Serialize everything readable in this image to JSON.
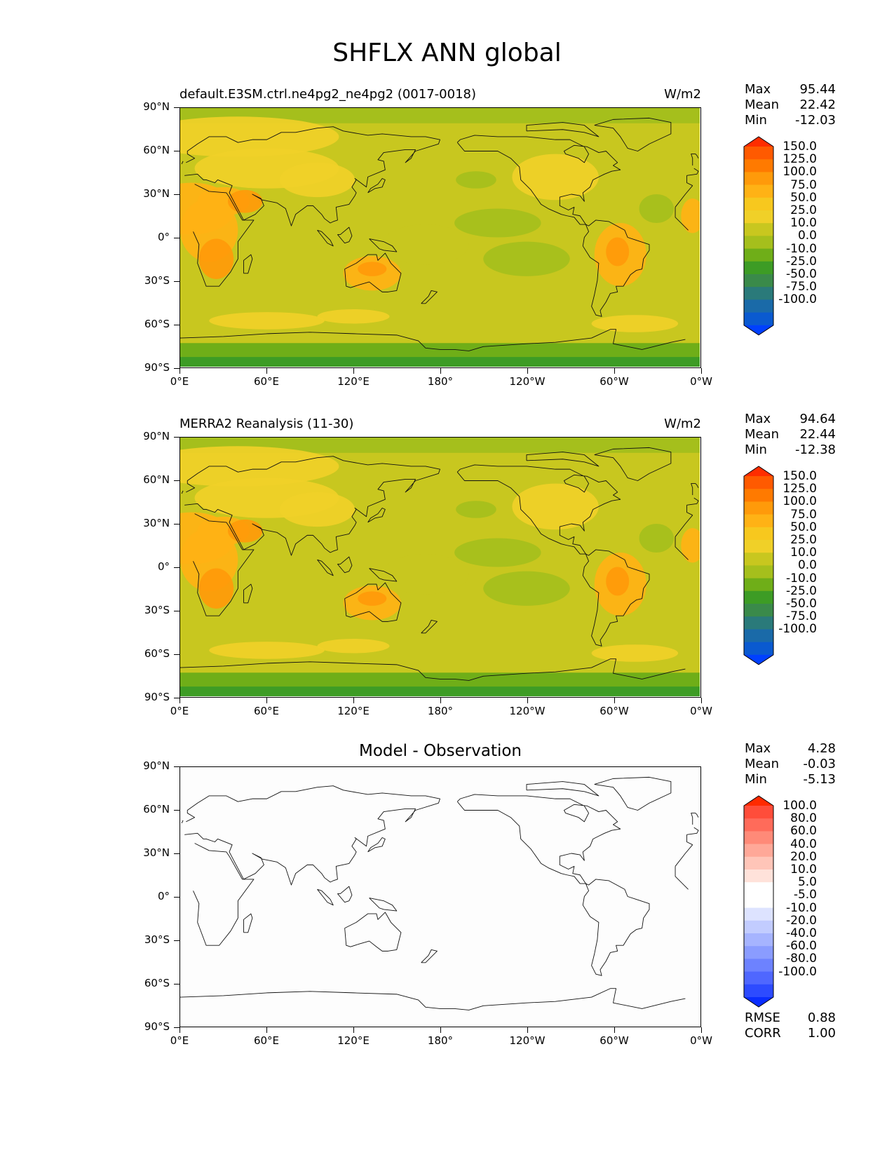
{
  "figure_title": "SHFLX ANN global",
  "lon_labels": [
    "0°E",
    "60°E",
    "120°E",
    "180°",
    "120°W",
    "60°W",
    "0°W"
  ],
  "lat_labels": [
    "90°N",
    "60°N",
    "30°N",
    "0°",
    "30°S",
    "60°S",
    "90°S"
  ],
  "panels": [
    {
      "title_left": "default.E3SM.ctrl.ne4pg2_ne4pg2 (0017-0018)",
      "title_right": "W/m2",
      "title_center": "",
      "stats": [
        {
          "label": "Max",
          "value": "95.44"
        },
        {
          "label": "Mean",
          "value": "22.42"
        },
        {
          "label": "Min",
          "value": "-12.03"
        }
      ],
      "colorbar": {
        "labels": [
          "150.0",
          "125.0",
          "100.0",
          "75.0",
          "50.0",
          "25.0",
          "10.0",
          "0.0",
          "-10.0",
          "-25.0",
          "-50.0",
          "-75.0",
          "-100.0"
        ],
        "colors": [
          "#ff2d00",
          "#ff5a00",
          "#ff7a00",
          "#ff9a0a",
          "#ffb215",
          "#f7c81e",
          "#f0d028",
          "#c8c71f",
          "#a5bf1c",
          "#6fae18",
          "#3d9c25",
          "#3a8a4a",
          "#2a7a7a",
          "#1a6aa8",
          "#0a5ad0",
          "#0040ff"
        ]
      }
    },
    {
      "title_left": "MERRA2 Reanalysis (11-30)",
      "title_right": "W/m2",
      "title_center": "",
      "stats": [
        {
          "label": "Max",
          "value": "94.64"
        },
        {
          "label": "Mean",
          "value": "22.44"
        },
        {
          "label": "Min",
          "value": "-12.38"
        }
      ],
      "colorbar": {
        "labels": [
          "150.0",
          "125.0",
          "100.0",
          "75.0",
          "50.0",
          "25.0",
          "10.0",
          "0.0",
          "-10.0",
          "-25.0",
          "-50.0",
          "-75.0",
          "-100.0"
        ],
        "colors": [
          "#ff2d00",
          "#ff5a00",
          "#ff7a00",
          "#ff9a0a",
          "#ffb215",
          "#f7c81e",
          "#f0d028",
          "#c8c71f",
          "#a5bf1c",
          "#6fae18",
          "#3d9c25",
          "#3a8a4a",
          "#2a7a7a",
          "#1a6aa8",
          "#0a5ad0",
          "#0040ff"
        ]
      }
    },
    {
      "title_left": "",
      "title_right": "",
      "title_center": "Model - Observation",
      "stats": [
        {
          "label": "Max",
          "value": "4.28"
        },
        {
          "label": "Mean",
          "value": "-0.03"
        },
        {
          "label": "Min",
          "value": "-5.13"
        }
      ],
      "bottom_stats": [
        {
          "label": "RMSE",
          "value": "0.88"
        },
        {
          "label": "CORR",
          "value": "1.00"
        }
      ],
      "colorbar": {
        "labels": [
          "100.0",
          "80.0",
          "60.0",
          "40.0",
          "20.0",
          "10.0",
          "5.0",
          "-5.0",
          "-10.0",
          "-20.0",
          "-40.0",
          "-60.0",
          "-80.0",
          "-100.0"
        ],
        "colors": [
          "#ff2a00",
          "#ff4d3a",
          "#ff6b5a",
          "#ff8a78",
          "#ffa898",
          "#ffc5b8",
          "#ffe2da",
          "#ffffff",
          "#ffffff",
          "#dde3ff",
          "#c2ccff",
          "#a6b4ff",
          "#8a9cff",
          "#6d82ff",
          "#4f67ff",
          "#2d4bff",
          "#0a2dff"
        ]
      }
    }
  ],
  "chart_data": [
    {
      "type": "heatmap",
      "title": "default.E3SM.ctrl.ne4pg2_ne4pg2 (0017-0018)",
      "variable": "SHFLX",
      "units": "W/m2",
      "projection": "PlateCarree, central longitude 180",
      "x_ticks": [
        "0°E",
        "60°E",
        "120°E",
        "180°",
        "120°W",
        "60°W",
        "0°W"
      ],
      "y_ticks": [
        "90°N",
        "60°N",
        "30°N",
        "0°",
        "30°S",
        "60°S",
        "90°S"
      ],
      "xlim": [
        0,
        360
      ],
      "ylim": [
        -90,
        90
      ],
      "levels": [
        -100,
        -75,
        -50,
        -25,
        -10,
        0,
        10,
        25,
        50,
        75,
        100,
        125,
        150
      ],
      "stats": {
        "max": 95.44,
        "mean": 22.42,
        "min": -12.03
      }
    },
    {
      "type": "heatmap",
      "title": "MERRA2 Reanalysis (11-30)",
      "variable": "SHFLX",
      "units": "W/m2",
      "projection": "PlateCarree, central longitude 180",
      "x_ticks": [
        "0°E",
        "60°E",
        "120°E",
        "180°",
        "120°W",
        "60°W",
        "0°W"
      ],
      "y_ticks": [
        "90°N",
        "60°N",
        "30°N",
        "0°",
        "30°S",
        "60°S",
        "90°S"
      ],
      "xlim": [
        0,
        360
      ],
      "ylim": [
        -90,
        90
      ],
      "levels": [
        -100,
        -75,
        -50,
        -25,
        -10,
        0,
        10,
        25,
        50,
        75,
        100,
        125,
        150
      ],
      "stats": {
        "max": 94.64,
        "mean": 22.44,
        "min": -12.38
      }
    },
    {
      "type": "heatmap",
      "title": "Model - Observation",
      "variable": "SHFLX",
      "projection": "PlateCarree, central longitude 180",
      "x_ticks": [
        "0°E",
        "60°E",
        "120°E",
        "180°",
        "120°W",
        "60°W",
        "0°W"
      ],
      "y_ticks": [
        "90°N",
        "60°N",
        "30°N",
        "0°",
        "30°S",
        "60°S",
        "90°S"
      ],
      "xlim": [
        0,
        360
      ],
      "ylim": [
        -90,
        90
      ],
      "levels": [
        -100,
        -80,
        -60,
        -40,
        -20,
        -10,
        -5,
        5,
        10,
        20,
        40,
        60,
        80,
        100
      ],
      "stats": {
        "max": 4.28,
        "mean": -0.03,
        "min": -5.13,
        "rmse": 0.88,
        "corr": 1.0
      }
    }
  ]
}
